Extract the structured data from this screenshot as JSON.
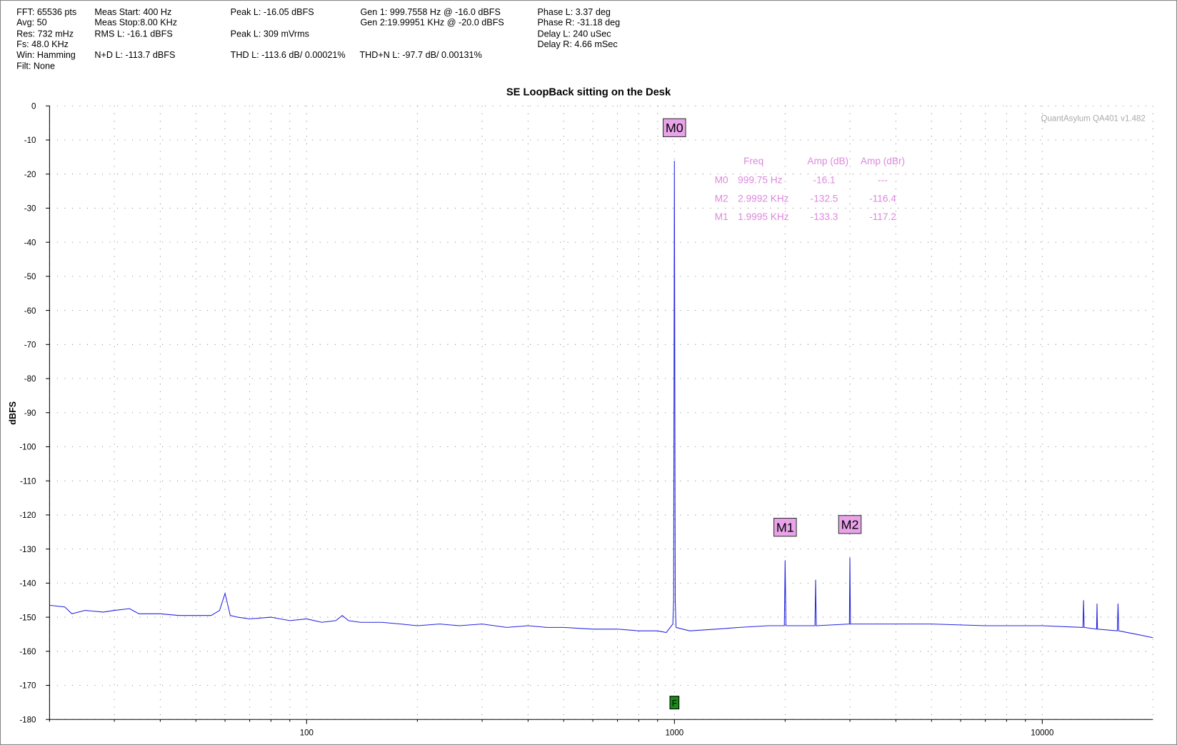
{
  "header": {
    "fft": "FFT: 65536 pts",
    "avg": "Avg: 50",
    "res": "Res: 732 mHz",
    "fs": "Fs: 48.0 KHz",
    "win": "Win: Hamming",
    "filt": "Filt: None",
    "meas_start": "Meas Start: 400 Hz",
    "meas_stop": "Meas Stop:8.00 KHz",
    "rms_l": "RMS L: -16.1 dBFS",
    "nd_l": "N+D L: -113.7 dBFS",
    "peak_l_dbfs": "Peak L: -16.05 dBFS",
    "peak_l_mv": "Peak L: 309 mVrms",
    "thd_l": "THD L: -113.6 dB/ 0.00021%",
    "gen1": "Gen 1: 999.7558 Hz @ -16.0  dBFS",
    "gen2": "Gen 2:19.99951 KHz @ -20.0  dBFS",
    "thdn_l": "THD+N L: -97.7 dB/ 0.00131%",
    "phase_l": "Phase L: 3.37 deg",
    "phase_r": "Phase R: -31.18 deg",
    "delay_l": "Delay L: 240 uSec",
    "delay_r": "Delay R: 4.66 mSec"
  },
  "chart_data": {
    "type": "line",
    "title": "SE LoopBack sitting on the Desk",
    "y_label": "dBFS",
    "watermark": "QuantAsylum QA401 v1.482",
    "x_log": true,
    "grid": true,
    "xlim": [
      20,
      20000
    ],
    "ylim": [
      -180,
      0
    ],
    "xticks": [
      100,
      1000,
      10000
    ],
    "xminorticks": [
      20,
      30,
      40,
      50,
      60,
      70,
      80,
      90,
      200,
      300,
      400,
      500,
      600,
      700,
      800,
      900,
      2000,
      3000,
      4000,
      5000,
      6000,
      7000,
      8000,
      9000
    ],
    "yticks": [
      0,
      -10,
      -20,
      -30,
      -40,
      -50,
      -60,
      -70,
      -80,
      -90,
      -100,
      -110,
      -120,
      -130,
      -140,
      -150,
      -160,
      -170,
      -180
    ],
    "x": [
      20,
      22,
      23,
      25,
      28,
      30,
      33,
      35,
      40,
      45,
      50,
      55,
      58,
      60,
      62,
      65,
      70,
      80,
      90,
      100,
      110,
      120,
      125,
      130,
      140,
      160,
      180,
      200,
      230,
      260,
      300,
      350,
      400,
      450,
      500,
      600,
      700,
      800,
      900,
      950,
      990,
      995,
      999.75,
      1005,
      1010,
      1100,
      1300,
      1500,
      1800,
      1990,
      1999.5,
      2010,
      2410,
      2420,
      2430,
      2990,
      2999.2,
      3010,
      4000,
      5000,
      7000,
      10000,
      12900,
      12950,
      13000,
      14050,
      14090,
      14130,
      16000,
      16070,
      16140,
      18000,
      20000
    ],
    "series": [
      {
        "name": "L",
        "color": "#2424e0",
        "values": [
          -146.5,
          -147,
          -149,
          -148,
          -148.5,
          -148,
          -147.5,
          -149,
          -149,
          -149.5,
          -149.5,
          -149.5,
          -148,
          -143,
          -149.5,
          -150,
          -150.5,
          -150,
          -151,
          -150.5,
          -151.5,
          -151,
          -149.5,
          -151,
          -151.5,
          -151.5,
          -152,
          -152.5,
          -152,
          -152.5,
          -152,
          -153,
          -152.5,
          -153,
          -153,
          -153.5,
          -153.5,
          -154,
          -154,
          -154.5,
          -152,
          -145,
          -16.1,
          -145,
          -153,
          -154,
          -153.5,
          -153,
          -152.5,
          -152.5,
          -133.3,
          -152.5,
          -152.5,
          -139,
          -152.5,
          -152,
          -132.5,
          -152,
          -152,
          -152,
          -152.5,
          -152.5,
          -153,
          -145,
          -153,
          -153.5,
          -146,
          -153.5,
          -154,
          -146,
          -154,
          -155,
          -156
        ]
      }
    ],
    "markers": [
      {
        "name": "M0",
        "freq": {
          "value": 999.75,
          "label": "999.75 Hz"
        },
        "amp": -16.1,
        "dbr": "---"
      },
      {
        "name": "M2",
        "freq": {
          "value": 2999.2,
          "label": "2.9992 KHz"
        },
        "amp": -132.5,
        "dbr": -116.4
      },
      {
        "name": "M1",
        "freq": {
          "value": 1999.5,
          "label": "1.9995 KHz"
        },
        "amp": -133.3,
        "dbr": -117.2
      }
    ],
    "marker_table_headers": [
      "Freq",
      "Amp (dB)",
      "Amp (dBr)"
    ],
    "f_marker": {
      "label": "F",
      "x": 1000
    }
  }
}
